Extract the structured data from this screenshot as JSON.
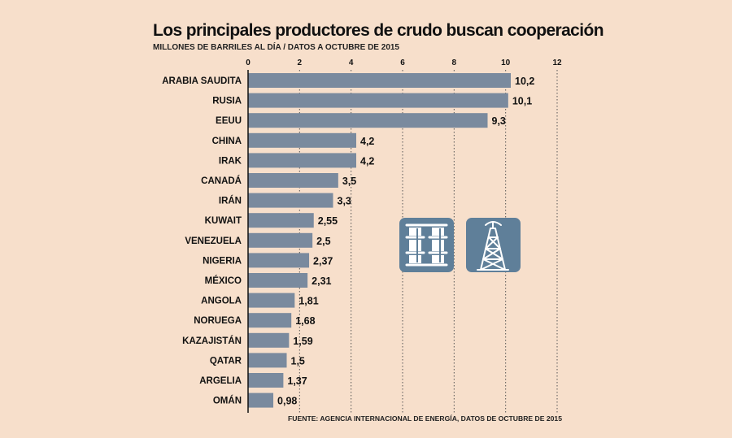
{
  "chart_data": {
    "type": "bar",
    "orientation": "horizontal",
    "title": "Los principales productores de crudo buscan cooperación",
    "subtitle": "MILLONES DE BARRILES AL DÍA / DATOS A OCTUBRE DE 2015",
    "source": "FUENTE: AGENCIA INTERNACIONAL DE ENERGÍA, DATOS DE OCTUBRE DE 2015",
    "categories": [
      "ARABIA SAUDITA",
      "RUSIA",
      "EEUU",
      "CHINA",
      "IRAK",
      "CANADÁ",
      "IRÁN",
      "KUWAIT",
      "VENEZUELA",
      "NIGERIA",
      "MÉXICO",
      "ANGOLA",
      "NORUEGA",
      "KAZAJISTÁN",
      "QATAR",
      "ARGELIA",
      "OMÁN"
    ],
    "values": [
      10.2,
      10.1,
      9.3,
      4.2,
      4.2,
      3.5,
      3.3,
      2.55,
      2.5,
      2.37,
      2.31,
      1.81,
      1.68,
      1.59,
      1.5,
      1.37,
      0.98
    ],
    "value_labels": [
      "10,2",
      "10,1",
      "9,3",
      "4,2",
      "4,2",
      "3,5",
      "3,3",
      "2,55",
      "2,5",
      "2,37",
      "2,31",
      "1,81",
      "1,68",
      "1,59",
      "1,5",
      "1,37",
      "0,98"
    ],
    "xlim": [
      0,
      12
    ],
    "xticks": [
      0,
      2,
      4,
      6,
      8,
      10,
      12
    ],
    "grid": "vertical-dotted",
    "colors": {
      "bar": "#7a8a9e",
      "background": "#f7dfcb",
      "icon_bg": "#5f7f99"
    }
  },
  "icons": [
    "oil-barrels-icon",
    "oil-rig-icon"
  ]
}
